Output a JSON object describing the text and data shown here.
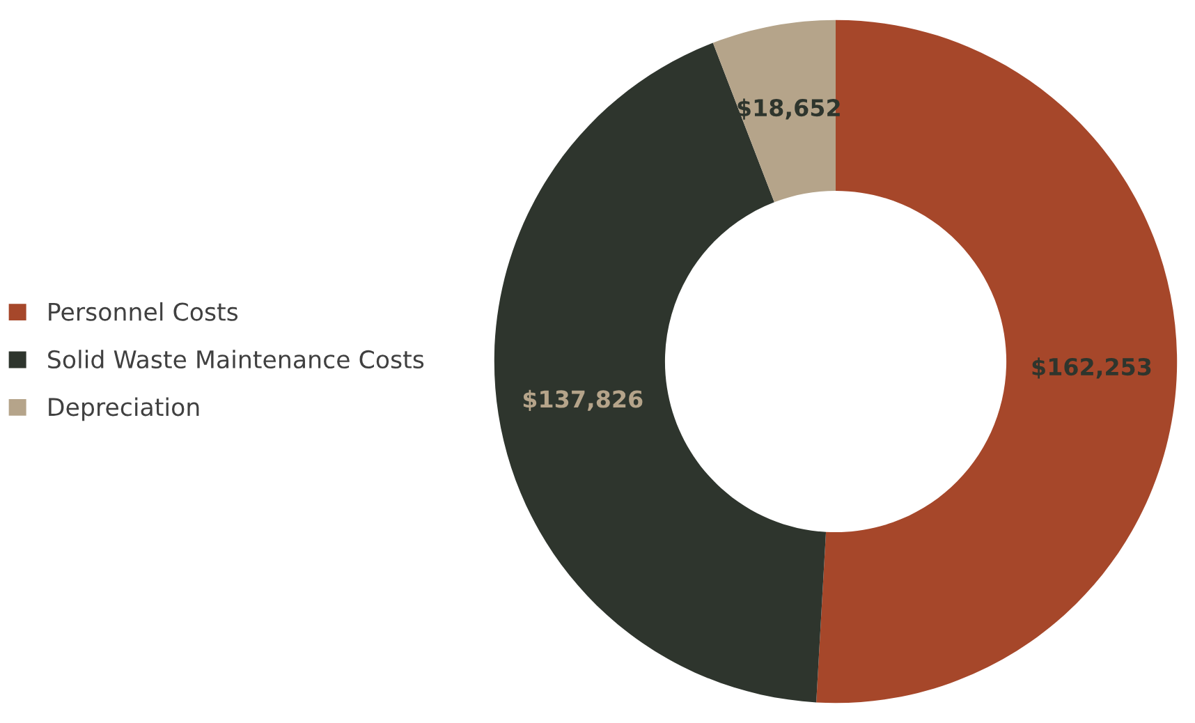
{
  "chart_data": {
    "type": "donut",
    "categories": [
      "Personnel Costs",
      "Solid Waste Maintenance Costs",
      "Depreciation"
    ],
    "values": [
      162253,
      137826,
      18652
    ],
    "colors": [
      "#a6472a",
      "#2e352d",
      "#b5a48a"
    ],
    "value_labels": [
      "$162,253",
      "$137,826",
      "$18,652"
    ],
    "legend": "left"
  }
}
